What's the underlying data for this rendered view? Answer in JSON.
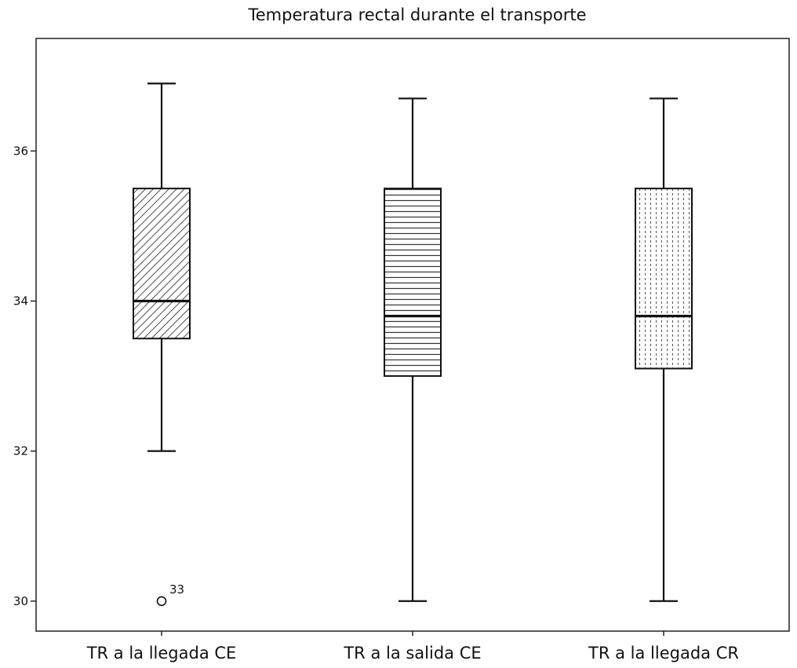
{
  "chart_data": {
    "type": "boxplot",
    "title": "Temperatura rectal durante el transporte",
    "xlabel": "",
    "ylabel": "",
    "ylim": [
      29.6,
      37.5
    ],
    "yticks": [
      30,
      32,
      34,
      36
    ],
    "grid": false,
    "legend": "none",
    "categories": [
      "TR a la llegada CE",
      "TR a la salida CE",
      "TR a la llegada CR"
    ],
    "boxes": [
      {
        "category": "TR a la llegada CE",
        "whisker_low": 32.0,
        "q1": 33.5,
        "median": 34.0,
        "q3": 35.5,
        "whisker_high": 36.9,
        "pattern": "diagonal-hatch",
        "outliers": [
          {
            "value": 30.0,
            "label": "33"
          }
        ]
      },
      {
        "category": "TR a la salida CE",
        "whisker_low": 30.0,
        "q1": 33.0,
        "median": 33.8,
        "q3": 35.5,
        "whisker_high": 36.7,
        "pattern": "horizontal-lines",
        "outliers": []
      },
      {
        "category": "TR a la llegada CR",
        "whisker_low": 30.0,
        "q1": 33.1,
        "median": 33.8,
        "q3": 35.5,
        "whisker_high": 36.7,
        "pattern": "vertical-dots",
        "outliers": []
      }
    ]
  }
}
